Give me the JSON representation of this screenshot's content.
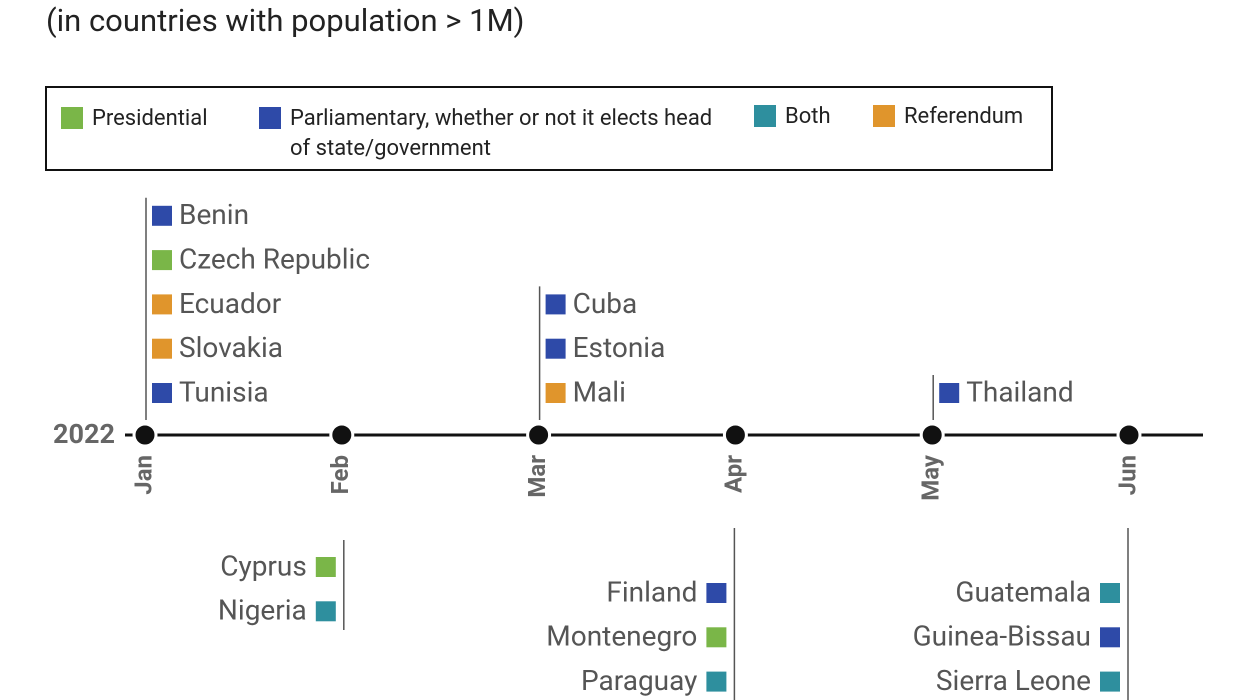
{
  "subtitle": "(in countries with population > 1M)",
  "legend": [
    {
      "label": "Presidential",
      "color": "#7ab648"
    },
    {
      "label": "Parliamentary, whether or not it elects head of state/government",
      "color": "#2e4aa8"
    },
    {
      "label": "Both",
      "color": "#2e8f9e"
    },
    {
      "label": "Referendum",
      "color": "#e0952c"
    }
  ],
  "timeline": {
    "year": "2022",
    "months": [
      {
        "label": "Jan",
        "above": [
          {
            "name": "Benin",
            "color": "#2e4aa8"
          },
          {
            "name": "Czech Republic",
            "color": "#7ab648"
          },
          {
            "name": "Ecuador",
            "color": "#e0952c"
          },
          {
            "name": "Slovakia",
            "color": "#e0952c"
          },
          {
            "name": "Tunisia",
            "color": "#2e4aa8"
          }
        ],
        "below": []
      },
      {
        "label": "Feb",
        "above": [],
        "below": [
          {
            "name": "Cyprus",
            "color": "#7ab648"
          },
          {
            "name": "Nigeria",
            "color": "#2e8f9e"
          }
        ]
      },
      {
        "label": "Mar",
        "above": [
          {
            "name": "Cuba",
            "color": "#2e4aa8"
          },
          {
            "name": "Estonia",
            "color": "#2e4aa8"
          },
          {
            "name": "Mali",
            "color": "#e0952c"
          }
        ],
        "below": []
      },
      {
        "label": "Apr",
        "above": [],
        "below": [
          {
            "name": "Finland",
            "color": "#2e4aa8"
          },
          {
            "name": "Montenegro",
            "color": "#7ab648"
          },
          {
            "name": "Paraguay",
            "color": "#2e8f9e"
          }
        ]
      },
      {
        "label": "May",
        "above": [
          {
            "name": "Thailand",
            "color": "#2e4aa8"
          }
        ],
        "below": []
      },
      {
        "label": "Jun",
        "above": [],
        "below": [
          {
            "name": "Guatemala",
            "color": "#2e8f9e"
          },
          {
            "name": "Guinea-Bissau",
            "color": "#2e4aa8"
          },
          {
            "name": "Sierra Leone",
            "color": "#2e8f9e"
          }
        ]
      }
    ]
  }
}
